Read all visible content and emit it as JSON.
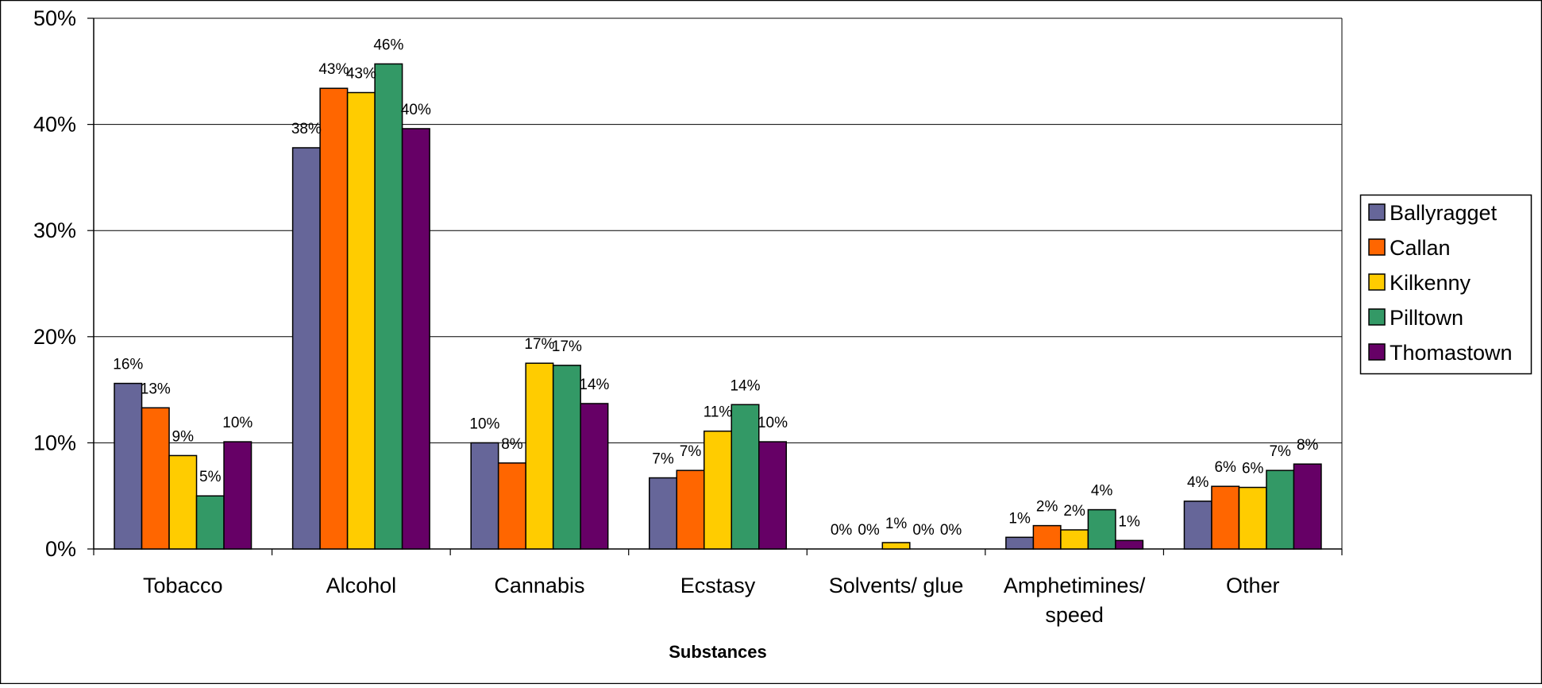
{
  "chart_data": {
    "type": "bar",
    "title": "",
    "xlabel": "Substances",
    "ylabel": "",
    "ylim": [
      0,
      50
    ],
    "y_ticks": [
      "0%",
      "10%",
      "20%",
      "30%",
      "40%",
      "50%"
    ],
    "y_tick_values": [
      0,
      10,
      20,
      30,
      40,
      50
    ],
    "grid": true,
    "legend_position": "right",
    "categories": [
      [
        "Tobacco"
      ],
      [
        "Alcohol"
      ],
      [
        "Cannabis"
      ],
      [
        "Ecstasy"
      ],
      [
        "Solvents/ glue"
      ],
      [
        "Amphetimines/",
        "speed"
      ],
      [
        "Other"
      ]
    ],
    "series": [
      {
        "name": "Ballyragget",
        "color": "#666699",
        "values": [
          15.6,
          37.8,
          10.0,
          6.7,
          0.0,
          1.1,
          4.5
        ],
        "labels": [
          "16%",
          "38%",
          "10%",
          "7%",
          "0%",
          "1%",
          "4%"
        ]
      },
      {
        "name": "Callan",
        "color": "#FF6600",
        "values": [
          13.3,
          43.4,
          8.1,
          7.4,
          0.0,
          2.2,
          5.9
        ],
        "labels": [
          "13%",
          "43%",
          "8%",
          "7%",
          "0%",
          "2%",
          "6%"
        ]
      },
      {
        "name": "Kilkenny",
        "color": "#FFCC00",
        "values": [
          8.8,
          43.0,
          17.5,
          11.1,
          0.6,
          1.8,
          5.8
        ],
        "labels": [
          "9%",
          "43%",
          "17%",
          "11%",
          "1%",
          "2%",
          "6%"
        ]
      },
      {
        "name": "Pilltown",
        "color": "#339966",
        "values": [
          5.0,
          45.7,
          17.3,
          13.6,
          0.0,
          3.7,
          7.4
        ],
        "labels": [
          "5%",
          "46%",
          "17%",
          "14%",
          "0%",
          "4%",
          "7%"
        ]
      },
      {
        "name": "Thomastown",
        "color": "#660066",
        "values": [
          10.1,
          39.6,
          13.7,
          10.1,
          0.0,
          0.8,
          8.0
        ],
        "labels": [
          "10%",
          "40%",
          "14%",
          "10%",
          "0%",
          "1%",
          "8%"
        ]
      }
    ]
  }
}
